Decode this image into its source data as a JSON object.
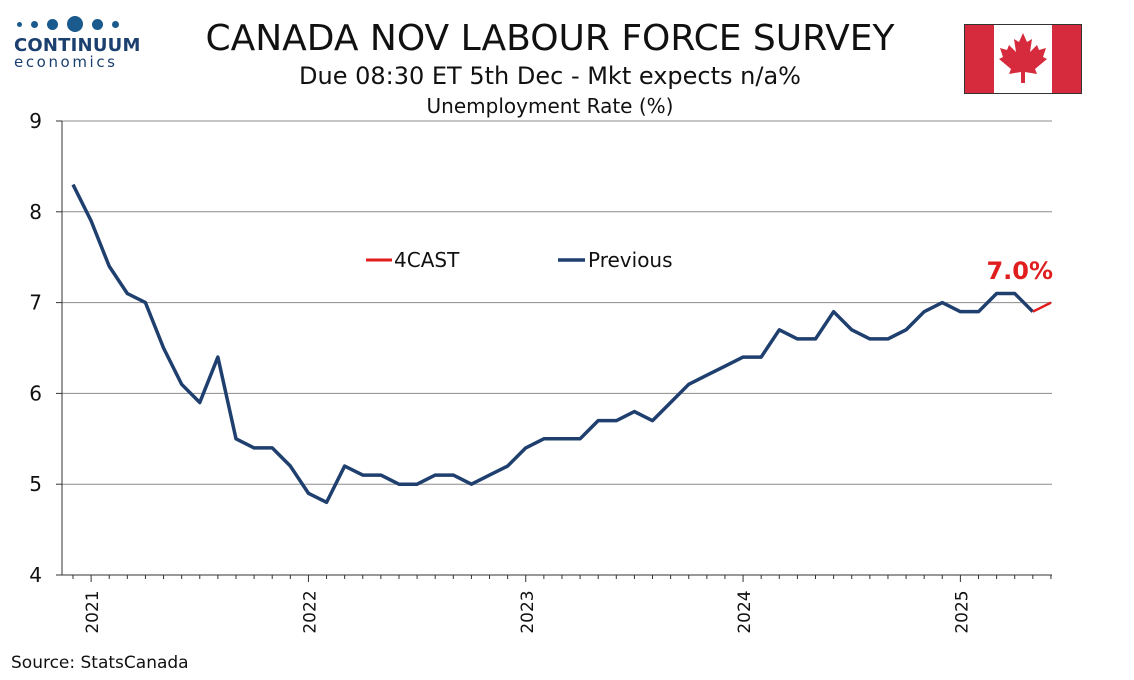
{
  "header": {
    "title": "CANADA NOV LABOUR FORCE SURVEY",
    "subtitle": "Due 08:30 ET 5th Dec - Mkt expects n/a%"
  },
  "logo": {
    "name": "CONTINUUM",
    "sub": "economics"
  },
  "flag": {
    "icon": "maple-leaf-icon",
    "red": "#d52b3c",
    "white": "#ffffff"
  },
  "source": "Source: StatsCanada",
  "chart_data": {
    "type": "line",
    "title": "Unemployment Rate (%)",
    "xlabel": "",
    "ylabel": "",
    "ylim": [
      4,
      9
    ],
    "yticks": [
      4,
      5,
      6,
      7,
      8,
      9
    ],
    "grid": true,
    "legend": [
      "4CAST",
      "Previous"
    ],
    "legend_position": "top-center",
    "x_tick_labels": [
      "2021",
      "2022",
      "2023",
      "2024",
      "2025"
    ],
    "x_start": "2020-12",
    "series": [
      {
        "name": "Previous",
        "color": "#1f3f6e",
        "values": [
          8.3,
          7.9,
          7.4,
          7.1,
          7.0,
          6.5,
          6.1,
          5.9,
          6.4,
          5.5,
          5.4,
          5.4,
          5.2,
          4.9,
          4.8,
          5.2,
          5.1,
          5.1,
          5.0,
          5.0,
          5.1,
          5.1,
          5.0,
          5.1,
          5.2,
          5.4,
          5.5,
          5.5,
          5.5,
          5.7,
          5.7,
          5.8,
          5.7,
          5.9,
          6.1,
          6.2,
          6.3,
          6.4,
          6.4,
          6.7,
          6.6,
          6.6,
          6.9,
          6.7,
          6.6,
          6.6,
          6.7,
          6.9,
          7.0,
          6.9,
          6.9,
          7.1,
          7.1,
          6.9
        ]
      },
      {
        "name": "4CAST",
        "color": "#e01e1e",
        "start_index": 53,
        "values": [
          6.9,
          7.0
        ]
      }
    ],
    "annotations": [
      {
        "text": "7.0%",
        "color": "#e01e1e"
      }
    ]
  }
}
